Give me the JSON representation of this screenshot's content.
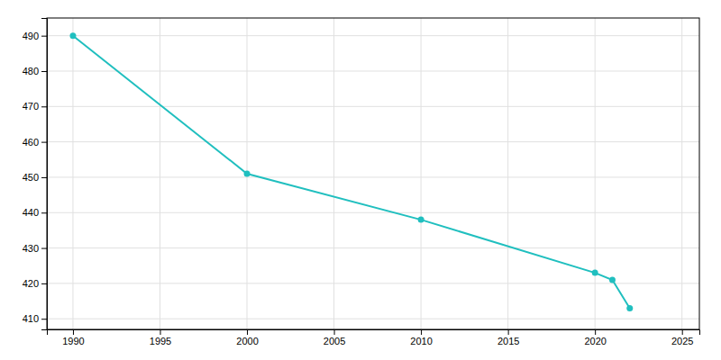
{
  "chart_data": {
    "type": "line",
    "x": [
      1990,
      2000,
      2010,
      2020,
      2021,
      2022
    ],
    "values": [
      490,
      451,
      438,
      423,
      421,
      413
    ],
    "color": "#20BFBF",
    "marker": "circle",
    "xlim": [
      1988.5,
      2026
    ],
    "ylim": [
      407,
      495
    ],
    "xticks": [
      1990,
      1995,
      2000,
      2005,
      2010,
      2015,
      2020,
      2025
    ],
    "yticks": [
      410,
      420,
      430,
      440,
      450,
      460,
      470,
      480,
      490
    ],
    "grid": true
  }
}
